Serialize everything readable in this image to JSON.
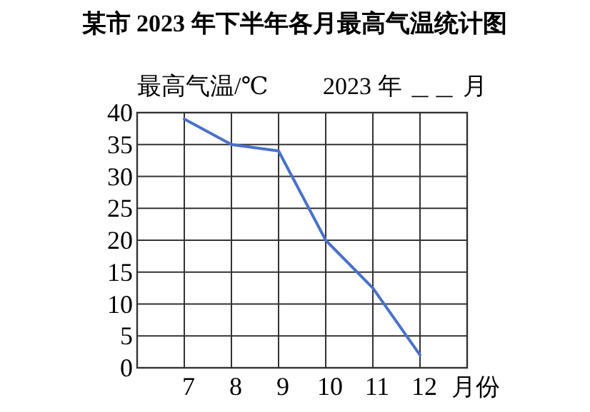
{
  "chart_data": {
    "type": "line",
    "title": "某市 2023 年下半年各月最高气温统计图",
    "ylabel": "最高气温/℃",
    "xlabel": "月份",
    "annotations": [
      "2023 年 ＿＿ 月"
    ],
    "x": [
      7,
      8,
      9,
      10,
      11,
      12
    ],
    "series": [
      {
        "color": "#4a72c8",
        "values": [
          39,
          35,
          34,
          20,
          12.5,
          2
        ]
      }
    ],
    "xlim": [
      6,
      13
    ],
    "xticks": [
      {
        "value": 6,
        "label": null
      },
      7,
      8,
      9,
      10,
      11,
      12,
      {
        "value": 13,
        "label": null
      }
    ],
    "ylim": [
      0,
      40
    ],
    "yticks": [
      0,
      5,
      10,
      15,
      20,
      25,
      30,
      35,
      40
    ],
    "grid": true,
    "marker": "none",
    "line_style": "solid"
  }
}
